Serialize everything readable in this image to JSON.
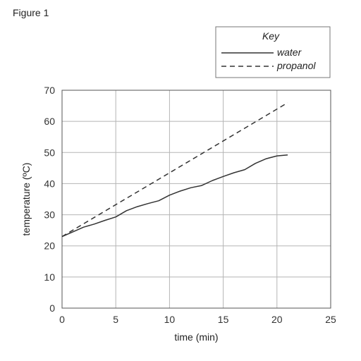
{
  "figure_label": "Figure 1",
  "chart_data": {
    "type": "line",
    "xlabel": "time (min)",
    "ylabel": "temperature (ºC)",
    "xlim": [
      0,
      25
    ],
    "ylim": [
      0,
      70
    ],
    "xticks": [
      0,
      5,
      10,
      15,
      20,
      25
    ],
    "yticks": [
      0,
      10,
      20,
      30,
      40,
      50,
      60,
      70
    ],
    "grid": true,
    "legend": {
      "title": "Key",
      "placement": "top-right"
    },
    "series": [
      {
        "name": "water",
        "style": "solid",
        "x": [
          0,
          1,
          2,
          3,
          4,
          5,
          6,
          7,
          8,
          9,
          10,
          11,
          12,
          13,
          14,
          15,
          16,
          17,
          18,
          19,
          20,
          21
        ],
        "y": [
          23,
          24.5,
          26,
          27,
          28.2,
          29.3,
          31.3,
          32.6,
          33.6,
          34.5,
          36.3,
          37.6,
          38.7,
          39.4,
          41,
          42.3,
          43.5,
          44.5,
          46.5,
          48,
          48.9,
          49.2
        ]
      },
      {
        "name": "propanol",
        "style": "dashed",
        "x": [
          0,
          21
        ],
        "y": [
          23,
          66
        ]
      }
    ]
  }
}
